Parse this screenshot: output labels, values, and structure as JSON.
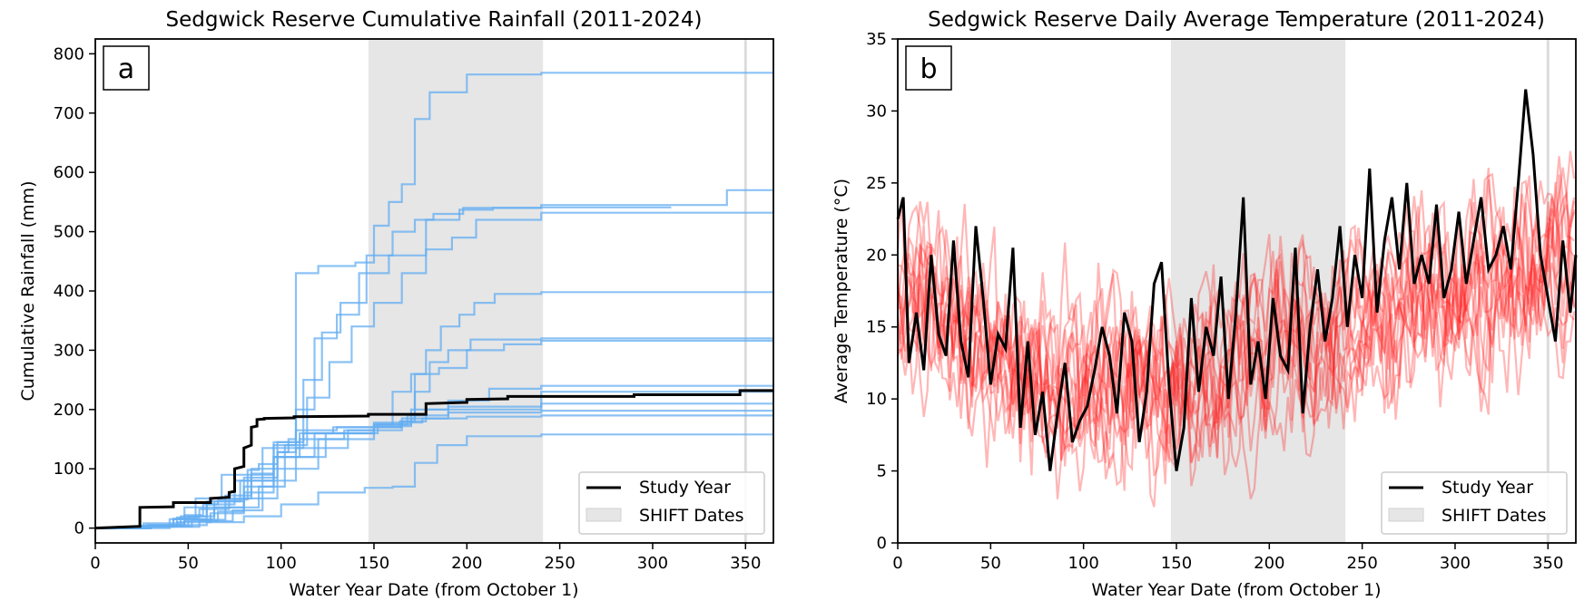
{
  "chart_data": [
    {
      "type": "line",
      "panel_label": "a",
      "title": "Sedgwick Reserve Cumulative Rainfall (2011-2024)",
      "xlabel": "Water Year Date (from October 1)",
      "ylabel": "Cumulative Rainfall (mm)",
      "xlim": [
        0,
        365
      ],
      "ylim": [
        -25,
        825
      ],
      "xticks": [
        0,
        50,
        100,
        150,
        200,
        250,
        300,
        350
      ],
      "yticks": [
        0,
        100,
        200,
        300,
        400,
        500,
        600,
        700,
        800
      ],
      "shaded_region": {
        "label": "SHIFT Dates",
        "x0": 147,
        "x1": 241,
        "color": "#e6e6e6"
      },
      "vline": 350,
      "background_color": "#64aef2",
      "legend": {
        "position": "lower-right",
        "entries": [
          "Study Year",
          "SHIFT Dates"
        ]
      },
      "study_year": {
        "name": "Study Year",
        "color": "#000000",
        "x": [
          0,
          24,
          24,
          42,
          42,
          62,
          62,
          72,
          72,
          75,
          75,
          80,
          80,
          84,
          84,
          87,
          87,
          91,
          91,
          107,
          107,
          147,
          147,
          178,
          178,
          200,
          200,
          222,
          222,
          290,
          290,
          347,
          347,
          365
        ],
        "y": [
          0,
          3,
          35,
          36,
          43,
          43,
          50,
          52,
          60,
          62,
          100,
          104,
          135,
          140,
          170,
          172,
          183,
          184,
          185,
          186,
          188,
          189,
          192,
          192,
          210,
          212,
          217,
          218,
          222,
          222,
          225,
          225,
          232,
          232
        ]
      },
      "background_series": [
        {
          "x": [
            0,
            22,
            42,
            48,
            58,
            66,
            82,
            88,
            98,
            104,
            108,
            120,
            140,
            150,
            158,
            165,
            172,
            180,
            200,
            240,
            365
          ],
          "y": [
            0,
            2,
            15,
            22,
            40,
            48,
            98,
            108,
            128,
            150,
            430,
            442,
            448,
            510,
            550,
            580,
            690,
            735,
            765,
            768,
            770
          ]
        },
        {
          "x": [
            0,
            28,
            44,
            56,
            72,
            84,
            96,
            112,
            122,
            132,
            146,
            160,
            172,
            182,
            198,
            210,
            240,
            340,
            365
          ],
          "y": [
            0,
            5,
            18,
            32,
            50,
            92,
            145,
            250,
            330,
            380,
            460,
            500,
            520,
            530,
            540,
            540,
            545,
            570,
            572
          ]
        },
        {
          "x": [
            0,
            26,
            50,
            64,
            80,
            98,
            108,
            118,
            130,
            142,
            158,
            178,
            196,
            214,
            240,
            310
          ],
          "y": [
            0,
            4,
            20,
            45,
            85,
            128,
            200,
            320,
            360,
            430,
            460,
            520,
            537,
            540,
            541,
            541
          ]
        },
        {
          "x": [
            0,
            30,
            52,
            70,
            88,
            102,
            114,
            126,
            138,
            150,
            165,
            178,
            192,
            205,
            240,
            365
          ],
          "y": [
            0,
            3,
            14,
            35,
            70,
            140,
            220,
            280,
            340,
            380,
            430,
            470,
            490,
            520,
            532,
            535
          ]
        },
        {
          "x": [
            0,
            24,
            40,
            60,
            75,
            90,
            112,
            150,
            165,
            172,
            178,
            186,
            196,
            204,
            215,
            240,
            365
          ],
          "y": [
            0,
            4,
            15,
            40,
            80,
            135,
            160,
            165,
            185,
            260,
            300,
            340,
            360,
            380,
            395,
            398,
            400
          ]
        },
        {
          "x": [
            0,
            28,
            46,
            60,
            78,
            96,
            118,
            150,
            164,
            172,
            180,
            190,
            202,
            240,
            365
          ],
          "y": [
            0,
            5,
            20,
            45,
            80,
            120,
            160,
            170,
            180,
            230,
            280,
            300,
            318,
            320,
            320
          ]
        },
        {
          "x": [
            0,
            24,
            48,
            64,
            80,
            96,
            124,
            152,
            160,
            170,
            185,
            200,
            220,
            240,
            365
          ],
          "y": [
            0,
            3,
            15,
            35,
            70,
            120,
            160,
            175,
            230,
            260,
            270,
            300,
            310,
            316,
            316
          ]
        },
        {
          "x": [
            0,
            30,
            48,
            66,
            80,
            98,
            120,
            150,
            165,
            178,
            190,
            212,
            240,
            365
          ],
          "y": [
            0,
            4,
            12,
            28,
            50,
            100,
            150,
            170,
            180,
            200,
            215,
            235,
            240,
            242
          ]
        },
        {
          "x": [
            0,
            26,
            44,
            62,
            80,
            96,
            110,
            134,
            150,
            168,
            190,
            240,
            365
          ],
          "y": [
            0,
            3,
            10,
            25,
            60,
            120,
            150,
            165,
            175,
            190,
            205,
            210,
            210
          ]
        },
        {
          "x": [
            0,
            30,
            56,
            74,
            90,
            108,
            136,
            150,
            170,
            190,
            240,
            365
          ],
          "y": [
            0,
            2,
            12,
            30,
            80,
            135,
            165,
            175,
            185,
            195,
            198,
            198
          ]
        },
        {
          "x": [
            0,
            20,
            40,
            60,
            80,
            100,
            120,
            145,
            160,
            172,
            184,
            200,
            240,
            365
          ],
          "y": [
            0,
            0,
            5,
            10,
            20,
            40,
            60,
            68,
            70,
            110,
            140,
            155,
            158,
            158
          ]
        },
        {
          "x": [
            0,
            24,
            42,
            54,
            68,
            84,
            98,
            110,
            128,
            150,
            176,
            200,
            240,
            365
          ],
          "y": [
            0,
            3,
            16,
            50,
            90,
            100,
            145,
            160,
            170,
            178,
            185,
            188,
            190,
            190
          ]
        },
        {
          "x": [
            0,
            26,
            48,
            70,
            84,
            96,
            108,
            130,
            150,
            170,
            240,
            365
          ],
          "y": [
            0,
            8,
            35,
            55,
            90,
            140,
            165,
            170,
            172,
            200,
            230,
            235
          ]
        }
      ]
    },
    {
      "type": "line",
      "panel_label": "b",
      "title": "Sedgwick Reserve Daily Average Temperature (2011-2024)",
      "xlabel": "Water Year Date (from October 1)",
      "ylabel": "Average Temperature (°C)",
      "xlim": [
        0,
        365
      ],
      "ylim": [
        0,
        35
      ],
      "xticks": [
        0,
        50,
        100,
        150,
        200,
        250,
        300,
        350
      ],
      "yticks": [
        0,
        5,
        10,
        15,
        20,
        25,
        30,
        35
      ],
      "shaded_region": {
        "label": "SHIFT Dates",
        "x0": 147,
        "x1": 241,
        "color": "#e6e6e6"
      },
      "vline": 350,
      "background_color": "#ff2020",
      "background_series_count": 13,
      "legend": {
        "position": "lower-right",
        "entries": [
          "Study Year",
          "SHIFT Dates"
        ]
      },
      "study_year": {
        "name": "Study Year",
        "color": "#000000",
        "x": [
          0,
          3,
          6,
          10,
          14,
          18,
          22,
          26,
          30,
          34,
          38,
          42,
          46,
          50,
          54,
          58,
          62,
          66,
          70,
          74,
          78,
          82,
          86,
          90,
          94,
          98,
          102,
          106,
          110,
          114,
          118,
          122,
          126,
          130,
          134,
          138,
          142,
          146,
          150,
          154,
          158,
          162,
          166,
          170,
          174,
          178,
          182,
          186,
          190,
          194,
          198,
          202,
          206,
          210,
          214,
          218,
          222,
          226,
          230,
          234,
          238,
          242,
          246,
          250,
          254,
          258,
          262,
          266,
          270,
          274,
          278,
          282,
          286,
          290,
          294,
          298,
          302,
          306,
          310,
          314,
          318,
          322,
          326,
          330,
          334,
          338,
          342,
          346,
          350,
          354,
          358,
          362,
          365
        ],
        "y": [
          22.5,
          24,
          12.5,
          16,
          12,
          20,
          14.5,
          13,
          21,
          14,
          11.5,
          22,
          17,
          11,
          14.5,
          13.5,
          20.5,
          8,
          14,
          7.5,
          10.5,
          5,
          9,
          12.5,
          7,
          8.5,
          9.5,
          12,
          15,
          13,
          9,
          16,
          14,
          7,
          10.5,
          18,
          19.5,
          11,
          5,
          8,
          17,
          10.5,
          15,
          13,
          18.5,
          10,
          16,
          24,
          11,
          14,
          10,
          17,
          13,
          12,
          20.5,
          9,
          15,
          19,
          14,
          17,
          22,
          15,
          20,
          17,
          26,
          16,
          21,
          24,
          19,
          25,
          18,
          20,
          18,
          23.5,
          17,
          19,
          23,
          18,
          21,
          24,
          19,
          20,
          22,
          19,
          25,
          31.5,
          27,
          20,
          17,
          14,
          21,
          16,
          20
        ]
      }
    }
  ]
}
